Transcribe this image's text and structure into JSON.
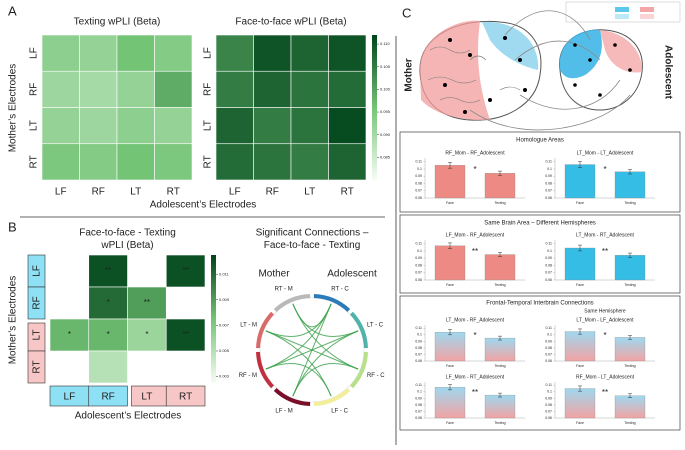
{
  "figure": {
    "panel_labels": [
      "A",
      "B",
      "C"
    ]
  },
  "panel_a": {
    "xlabel": "Adolescent’s Electrodes",
    "ylabel": "Mother’s Electrodes"
  },
  "panel_b": {
    "xlabel": "Adolescent’s Electrodes",
    "ylabel": "Mother’s Electrodes"
  },
  "panel_c": {
    "left_label": "Mother",
    "right_label": "Adolescent",
    "sections": [
      {
        "title": "Homologue Areas"
      },
      {
        "title": "Same Brain Area – Different Hemispheres"
      },
      {
        "title": "Frontal-Temporal Interbrain Connections",
        "subtitle": "Same Hemisphere"
      }
    ]
  },
  "chart_data": [
    {
      "type": "heatmap",
      "title": "Texting wPLI (Beta)",
      "x_categories": [
        "LF",
        "RF",
        "LT",
        "RT"
      ],
      "y_categories": [
        "LF",
        "RF",
        "LT",
        "RT"
      ],
      "values": [
        [
          0.093,
          0.092,
          0.096,
          0.094
        ],
        [
          0.091,
          0.09,
          0.092,
          0.099
        ],
        [
          0.092,
          0.091,
          0.093,
          0.092
        ],
        [
          0.095,
          0.094,
          0.096,
          0.095
        ]
      ],
      "zlim": [
        0.08,
        0.112
      ],
      "colormap": [
        "#f7fcf5",
        "#74c476",
        "#00441b"
      ]
    },
    {
      "type": "heatmap",
      "title": "Face-to-face wPLI (Beta)",
      "x_categories": [
        "LF",
        "RF",
        "LT",
        "RT"
      ],
      "y_categories": [
        "LF",
        "RF",
        "LT",
        "RT"
      ],
      "values": [
        [
          0.104,
          0.11,
          0.108,
          0.11
        ],
        [
          0.105,
          0.108,
          0.106,
          0.107
        ],
        [
          0.108,
          0.105,
          0.106,
          0.111
        ],
        [
          0.107,
          0.106,
          0.105,
          0.108
        ]
      ],
      "zlim": [
        0.08,
        0.112
      ],
      "zticks": [
        {
          "value": 0.11,
          "label": "0.110"
        },
        0.105,
        {
          "value": 0.1,
          "label": "0.100"
        },
        0.095,
        {
          "value": 0.09,
          "label": "0.090"
        },
        0.085
      ],
      "colormap": [
        "#f7fcf5",
        "#74c476",
        "#00441b"
      ],
      "colorbar": true
    },
    {
      "type": "heatmap",
      "title": [
        "Face-to-face - Texting",
        "wPLI (Beta)"
      ],
      "x_categories": [
        "LF",
        "RF",
        "LT",
        "RT"
      ],
      "y_categories": [
        "LF",
        "RF",
        "LT",
        "RT"
      ],
      "values": [
        [
          null,
          0.012,
          null,
          0.012
        ],
        [
          null,
          0.011,
          0.009,
          null
        ],
        [
          0.008,
          0.008,
          0.006,
          0.012
        ],
        [
          null,
          0.005,
          null,
          null
        ]
      ],
      "annotations": [
        [
          null,
          "**",
          null,
          "**"
        ],
        [
          null,
          "*",
          "**",
          null
        ],
        [
          "*",
          "*",
          "*",
          "**"
        ],
        [
          null,
          null,
          null,
          null
        ]
      ],
      "zlim": [
        0.0025,
        0.0125
      ],
      "zticks": [
        0.003,
        0.005,
        0.007,
        0.009,
        0.011
      ],
      "colormap": [
        "#f7fcf5",
        "#74c476",
        "#00441b"
      ],
      "colorbar": true,
      "category_colors": [
        "#8ee0f5",
        "#8ee0f5",
        "#f7c6c6",
        "#f7c6c6"
      ]
    },
    {
      "type": "chord",
      "title": [
        "Significant Connections –",
        "Face-to-face - Texting"
      ],
      "left_label": "Mother",
      "right_label": "Adolescent",
      "nodes": [
        "RT - C",
        "LT - C",
        "RF - C",
        "LF - C",
        "LF - M",
        "RF - M",
        "LT - M",
        "RT - M"
      ],
      "node_colors": [
        "#2b7bb9",
        "#4fb3a9",
        "#b8e08a",
        "#f2ee9a",
        "#7a0f2a",
        "#c2303f",
        "#d96a6a",
        "#b9b9b9"
      ],
      "edge_color": "#3aa04a"
    },
    {
      "type": "bar",
      "title": "RF_Mom - RF_Adolescent",
      "categories": [
        "Face",
        "Texting"
      ],
      "values": [
        0.105,
        0.094
      ],
      "errors": [
        0.004,
        0.003
      ],
      "significance": "*",
      "color": "#ec8a83",
      "ylim": [
        0.06,
        0.115
      ],
      "yticks": [
        0.06,
        0.07,
        0.08,
        0.09,
        0.1,
        0.11
      ]
    },
    {
      "type": "bar",
      "title": "LT_Mom - LT_Adolescent",
      "categories": [
        "Face",
        "Texting"
      ],
      "values": [
        0.106,
        0.096
      ],
      "errors": [
        0.004,
        0.003
      ],
      "significance": "*",
      "color": "#35bde6",
      "ylim": [
        0.06,
        0.115
      ],
      "yticks": [
        0.06,
        0.07,
        0.08,
        0.09,
        0.1,
        0.11
      ]
    },
    {
      "type": "bar",
      "title": "LF_Mom - RF_Adolescent",
      "categories": [
        "Face",
        "Texting"
      ],
      "values": [
        0.107,
        0.095
      ],
      "errors": [
        0.004,
        0.003
      ],
      "significance": "**",
      "color": "#ec8a83",
      "ylim": [
        0.06,
        0.115
      ],
      "yticks": [
        0.06,
        0.07,
        0.08,
        0.09,
        0.1,
        0.11
      ]
    },
    {
      "type": "bar",
      "title": "LT_Mom - RT_Adolescent",
      "categories": [
        "Face",
        "Texting"
      ],
      "values": [
        0.104,
        0.094
      ],
      "errors": [
        0.004,
        0.003
      ],
      "significance": "**",
      "color": "#35bde6",
      "ylim": [
        0.06,
        0.115
      ],
      "yticks": [
        0.06,
        0.07,
        0.08,
        0.09,
        0.1,
        0.11
      ]
    },
    {
      "type": "bar",
      "title": "LT_Mom - RF_Adolescent",
      "categories": [
        "Face",
        "Texting"
      ],
      "values": [
        0.104,
        0.095
      ],
      "errors": [
        0.004,
        0.003
      ],
      "significance": "*",
      "color": [
        "#9fd8ef",
        "#f2a3a3"
      ],
      "ylim": [
        0.06,
        0.115
      ],
      "yticks": [
        0.06,
        0.07,
        0.08,
        0.09,
        0.1,
        0.11
      ]
    },
    {
      "type": "bar",
      "title": "LT_Mom - LF_Adolescent",
      "categories": [
        "Face",
        "Texting"
      ],
      "values": [
        0.105,
        0.096
      ],
      "errors": [
        0.004,
        0.003
      ],
      "significance": "*",
      "color": [
        "#9fd8ef",
        "#f2a3a3"
      ],
      "ylim": [
        0.06,
        0.115
      ],
      "yticks": [
        0.06,
        0.07,
        0.08,
        0.09,
        0.1,
        0.11
      ]
    },
    {
      "type": "bar",
      "title": "LF_Mom - RT_Adolescent",
      "categories": [
        "Face",
        "Texting"
      ],
      "values": [
        0.107,
        0.095
      ],
      "errors": [
        0.004,
        0.003
      ],
      "significance": "**",
      "color": [
        "#9fd8ef",
        "#f2a3a3"
      ],
      "ylim": [
        0.06,
        0.115
      ],
      "yticks": [
        0.06,
        0.07,
        0.08,
        0.09,
        0.1,
        0.11
      ]
    },
    {
      "type": "bar",
      "title": "RF_Mom - LT_Adolescent",
      "categories": [
        "Face",
        "Texting"
      ],
      "values": [
        0.105,
        0.094
      ],
      "errors": [
        0.004,
        0.003
      ],
      "significance": "**",
      "color": [
        "#9fd8ef",
        "#f2a3a3"
      ],
      "ylim": [
        0.06,
        0.115
      ],
      "yticks": [
        0.06,
        0.07,
        0.08,
        0.09,
        0.1,
        0.11
      ]
    }
  ]
}
